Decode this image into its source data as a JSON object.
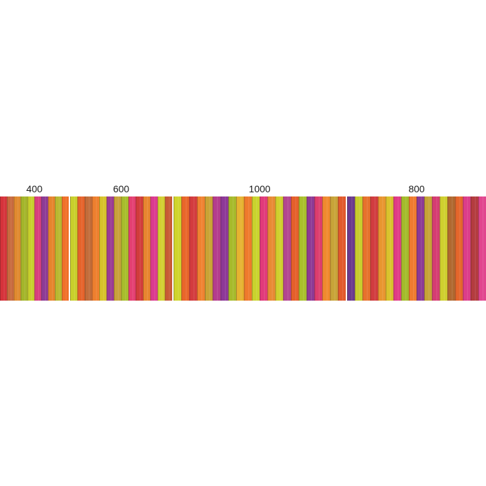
{
  "panels": [
    {
      "label": "400",
      "colors": [
        "#d6333b",
        "#c86a3e",
        "#e08a2f",
        "#a3b52a",
        "#c7cf2c",
        "#d83e7d",
        "#8e3b95",
        "#e6842c",
        "#b8b82f",
        "#f07028"
      ]
    },
    {
      "label": "600",
      "colors": [
        "#c9d02b",
        "#e5632b",
        "#c26c3a",
        "#ee7f2e",
        "#d7c32a",
        "#9b3c94",
        "#c8a23a",
        "#a8bd2c",
        "#e43f72",
        "#d23c3c",
        "#e8852f",
        "#db3a8f",
        "#d2cf31",
        "#c85a35"
      ]
    },
    {
      "label": "1000",
      "colors": [
        "#cfd42c",
        "#e9662a",
        "#d33b3e",
        "#f08230",
        "#c9a334",
        "#b43c8d",
        "#8d3897",
        "#a6ba2b",
        "#e6b330",
        "#ef7a2c",
        "#c9d32d",
        "#e13a7a",
        "#e88a34",
        "#cfcf2d",
        "#b34590",
        "#e55f2a",
        "#a9c02b",
        "#8e3995",
        "#dd3d6e",
        "#f08a2e",
        "#c8a438",
        "#e2592b"
      ]
    },
    {
      "label": "800",
      "colors": [
        "#6b3a8d",
        "#c7cd2d",
        "#e7712c",
        "#d13c3f",
        "#e8952f",
        "#d9c22c",
        "#e03a86",
        "#a4bb2b",
        "#ef7b2f",
        "#8c3a95",
        "#c6a437",
        "#d53c72",
        "#cfcf2e",
        "#b0682f",
        "#e5662b",
        "#dc3d8a",
        "#b33c3e",
        "#e1458f"
      ]
    }
  ]
}
